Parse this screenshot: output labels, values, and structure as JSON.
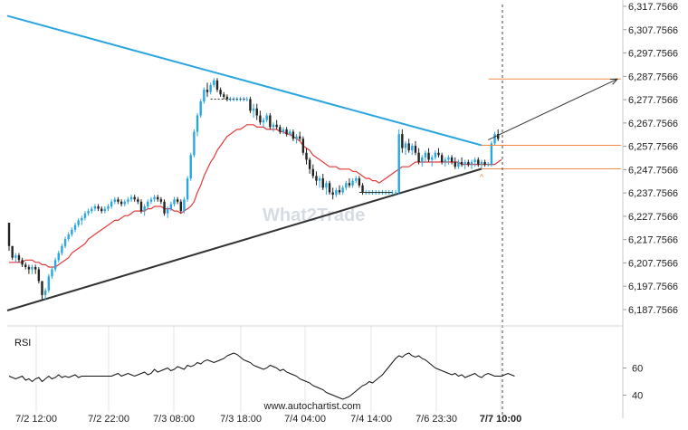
{
  "chart_data": {
    "type": "candlestick",
    "y_ticks": [
      "6,317.7566",
      "6,307.7566",
      "6,297.7566",
      "6,287.7566",
      "6,277.7566",
      "6,267.7566",
      "6,257.7566",
      "6,247.7566",
      "6,237.7566",
      "6,227.7566",
      "6,217.7566",
      "6,207.7566",
      "6,197.7566",
      "6,187.7566"
    ],
    "x_ticks": [
      "7/2 12:00",
      "7/2 22:00",
      "7/3 08:00",
      "7/3 18:00",
      "7/4 04:00",
      "7/4 14:00",
      "7/6 23:30",
      "7/7 10:00"
    ],
    "ylim": [
      6184.5,
      6318.5
    ],
    "n_bars": 150,
    "rsi": {
      "label": "RSI",
      "levels": [
        "60",
        "40"
      ],
      "ylim": [
        35,
        75
      ],
      "values": [
        54,
        53,
        52,
        53,
        54,
        51,
        52,
        50,
        52,
        53,
        50,
        52,
        54,
        52,
        53,
        55,
        53,
        54,
        53,
        54,
        55,
        53,
        54,
        54,
        54,
        54,
        54,
        54,
        54,
        54,
        54,
        54,
        55,
        56,
        54,
        55,
        56,
        55,
        54,
        55,
        56,
        57,
        55,
        56,
        59,
        57,
        58,
        59,
        60,
        58,
        59,
        61,
        60,
        59,
        62,
        61,
        62,
        64,
        63,
        65,
        66,
        65,
        64,
        65,
        66,
        67,
        69,
        70,
        71,
        70,
        68,
        66,
        65,
        64,
        62,
        61,
        60,
        59,
        60,
        62,
        61,
        60,
        58,
        59,
        57,
        56,
        55,
        54,
        52,
        51,
        50,
        49,
        47,
        46,
        45,
        44,
        42,
        41,
        40,
        39,
        38,
        37,
        38,
        39,
        41,
        43,
        45,
        47,
        48,
        50,
        49,
        51,
        53,
        55,
        58,
        61,
        64,
        67,
        69,
        68,
        70,
        71,
        69,
        68,
        69,
        67,
        66,
        64,
        62,
        60,
        59,
        58,
        57,
        56,
        55,
        56,
        54,
        55,
        53,
        54,
        55,
        56,
        54,
        53,
        55,
        56,
        55,
        54,
        54,
        54
      ],
      "end_values": [
        56,
        54
      ]
    },
    "fast_ma": [
      6208,
      6208,
      6208,
      6208,
      6208,
      6209,
      6209,
      6209,
      6208,
      6208,
      6207,
      6207,
      6206,
      6206,
      6206,
      6207,
      6208,
      6209,
      6210,
      6212,
      6213,
      6214,
      6215,
      6216,
      6218,
      6219,
      6220,
      6221,
      6222,
      6223,
      6224,
      6225,
      6226,
      6226,
      6227,
      6228,
      6228,
      6229,
      6230,
      6230,
      6230,
      6230,
      6231,
      6231,
      6232,
      6232,
      6232,
      6231,
      6231,
      6231,
      6230,
      6230,
      6229,
      6230,
      6231,
      6232,
      6234,
      6238,
      6241,
      6245,
      6248,
      6251,
      6253,
      6256,
      6258,
      6260,
      6262,
      6263,
      6264,
      6265,
      6265,
      6266,
      6267,
      6267,
      6267,
      6266,
      6266,
      6266,
      6265,
      6265,
      6265,
      6265,
      6264,
      6264,
      6263,
      6263,
      6262,
      6261,
      6260,
      6258,
      6257,
      6256,
      6254,
      6253,
      6252,
      6251,
      6250,
      6249,
      6249,
      6249,
      6248,
      6248,
      6248,
      6248,
      6247,
      6247,
      6246,
      6245,
      6244,
      6244,
      6243,
      6243,
      6242,
      6243,
      6244,
      6245,
      6246,
      6247,
      6248,
      6249,
      6249,
      6249,
      6250,
      6251,
      6251,
      6251,
      6251,
      6251,
      6251,
      6251,
      6251,
      6251,
      6251,
      6251,
      6251,
      6251,
      6251,
      6250,
      6250,
      6250,
      6250,
      6250,
      6250,
      6250,
      6250,
      6250,
      6250,
      6250,
      6251,
      6252
    ],
    "bar_ohlc": [
      [
        6225,
        6225,
        6213,
        6215
      ],
      [
        6215,
        6215,
        6209,
        6210
      ],
      [
        6210,
        6212,
        6208,
        6211
      ],
      [
        6211,
        6212,
        6208,
        6209
      ],
      [
        6209,
        6210,
        6206,
        6207
      ],
      [
        6207,
        6208,
        6205,
        6206
      ],
      [
        6206,
        6207,
        6203,
        6205
      ],
      [
        6205,
        6207,
        6203,
        6206
      ],
      [
        6206,
        6207,
        6203,
        6205
      ],
      [
        6205,
        6206,
        6199,
        6200
      ],
      [
        6200,
        6200,
        6192,
        6194
      ],
      [
        6194,
        6197,
        6192,
        6196
      ],
      [
        6196,
        6203,
        6195,
        6202
      ],
      [
        6202,
        6206,
        6201,
        6205
      ],
      [
        6205,
        6210,
        6204,
        6209
      ],
      [
        6209,
        6213,
        6208,
        6212
      ],
      [
        6212,
        6216,
        6211,
        6215
      ],
      [
        6215,
        6219,
        6214,
        6218
      ],
      [
        6218,
        6221,
        6217,
        6220
      ],
      [
        6220,
        6223,
        6219,
        6222
      ],
      [
        6222,
        6225,
        6221,
        6224
      ],
      [
        6224,
        6227,
        6223,
        6226
      ],
      [
        6226,
        6228,
        6224,
        6227
      ],
      [
        6227,
        6230,
        6226,
        6229
      ],
      [
        6229,
        6231,
        6228,
        6230
      ],
      [
        6230,
        6232,
        6229,
        6231
      ],
      [
        6231,
        6233,
        6230,
        6232
      ],
      [
        6232,
        6233,
        6230,
        6231
      ],
      [
        6231,
        6232,
        6229,
        6230
      ],
      [
        6230,
        6232,
        6229,
        6231
      ],
      [
        6231,
        6233,
        6230,
        6232
      ],
      [
        6232,
        6235,
        6231,
        6234
      ],
      [
        6234,
        6236,
        6233,
        6235
      ],
      [
        6235,
        6236,
        6233,
        6234
      ],
      [
        6234,
        6235,
        6232,
        6233
      ],
      [
        6233,
        6235,
        6232,
        6234
      ],
      [
        6234,
        6236,
        6233,
        6235
      ],
      [
        6235,
        6237,
        6234,
        6236
      ],
      [
        6236,
        6237,
        6234,
        6235
      ],
      [
        6235,
        6236,
        6233,
        6234
      ],
      [
        6234,
        6235,
        6229,
        6230
      ],
      [
        6230,
        6233,
        6228,
        6232
      ],
      [
        6232,
        6235,
        6231,
        6234
      ],
      [
        6234,
        6236,
        6233,
        6235
      ],
      [
        6235,
        6237,
        6234,
        6236
      ],
      [
        6236,
        6237,
        6234,
        6235
      ],
      [
        6235,
        6236,
        6233,
        6234
      ],
      [
        6234,
        6235,
        6228,
        6229
      ],
      [
        6229,
        6232,
        6227,
        6231
      ],
      [
        6231,
        6234,
        6230,
        6233
      ],
      [
        6233,
        6236,
        6232,
        6235
      ],
      [
        6235,
        6236,
        6233,
        6234
      ],
      [
        6234,
        6235,
        6229,
        6230
      ],
      [
        6230,
        6236,
        6229,
        6235
      ],
      [
        6235,
        6245,
        6234,
        6244
      ],
      [
        6244,
        6255,
        6243,
        6254
      ],
      [
        6254,
        6265,
        6253,
        6264
      ],
      [
        6264,
        6272,
        6262,
        6271
      ],
      [
        6271,
        6278,
        6270,
        6277
      ],
      [
        6277,
        6283,
        6276,
        6282
      ],
      [
        6282,
        6285,
        6279,
        6281
      ],
      [
        6281,
        6285,
        6280,
        6284
      ],
      [
        6284,
        6287,
        6283,
        6286
      ],
      [
        6286,
        6287,
        6281,
        6282
      ],
      [
        6282,
        6283,
        6279,
        6280
      ],
      [
        6280,
        6281,
        6278,
        6279
      ],
      [
        6279,
        6280,
        6277,
        6278
      ],
      [
        6278,
        6279,
        6277,
        6278
      ],
      [
        6278,
        6279,
        6277,
        6278
      ],
      [
        6278,
        6279,
        6277,
        6278
      ],
      [
        6278,
        6279,
        6277,
        6278
      ],
      [
        6278,
        6279,
        6277,
        6278
      ],
      [
        6278,
        6279,
        6277,
        6278
      ],
      [
        6278,
        6279,
        6272,
        6273
      ],
      [
        6273,
        6276,
        6270,
        6274
      ],
      [
        6274,
        6276,
        6269,
        6271
      ],
      [
        6271,
        6273,
        6267,
        6268
      ],
      [
        6268,
        6270,
        6266,
        6269
      ],
      [
        6269,
        6272,
        6268,
        6271
      ],
      [
        6271,
        6272,
        6265,
        6266
      ],
      [
        6266,
        6268,
        6264,
        6267
      ],
      [
        6267,
        6269,
        6265,
        6266
      ],
      [
        6266,
        6267,
        6263,
        6264
      ],
      [
        6264,
        6266,
        6263,
        6265
      ],
      [
        6265,
        6266,
        6262,
        6263
      ],
      [
        6263,
        6265,
        6262,
        6264
      ],
      [
        6264,
        6265,
        6260,
        6261
      ],
      [
        6261,
        6263,
        6259,
        6262
      ],
      [
        6262,
        6264,
        6260,
        6261
      ],
      [
        6261,
        6262,
        6254,
        6255
      ],
      [
        6255,
        6257,
        6250,
        6252
      ],
      [
        6252,
        6253,
        6246,
        6248
      ],
      [
        6248,
        6250,
        6244,
        6245
      ],
      [
        6245,
        6247,
        6241,
        6243
      ],
      [
        6243,
        6245,
        6240,
        6244
      ],
      [
        6244,
        6246,
        6239,
        6240
      ],
      [
        6240,
        6243,
        6237,
        6242
      ],
      [
        6242,
        6243,
        6237,
        6238
      ],
      [
        6238,
        6240,
        6235,
        6237
      ],
      [
        6237,
        6240,
        6236,
        6239
      ],
      [
        6239,
        6241,
        6237,
        6238
      ],
      [
        6238,
        6241,
        6237,
        6240
      ],
      [
        6240,
        6243,
        6239,
        6242
      ],
      [
        6242,
        6244,
        6240,
        6241
      ],
      [
        6241,
        6244,
        6240,
        6243
      ],
      [
        6243,
        6245,
        6242,
        6244
      ],
      [
        6244,
        6245,
        6240,
        6241
      ],
      [
        6241,
        6242,
        6237,
        6238
      ],
      [
        6238,
        6239,
        6237,
        6238
      ],
      [
        6238,
        6239,
        6237,
        6238
      ],
      [
        6238,
        6239,
        6237,
        6238
      ],
      [
        6238,
        6239,
        6237,
        6238
      ],
      [
        6238,
        6239,
        6237,
        6238
      ],
      [
        6238,
        6239,
        6237,
        6238
      ],
      [
        6238,
        6239,
        6237,
        6238
      ],
      [
        6238,
        6239,
        6237,
        6238
      ],
      [
        6238,
        6239,
        6237,
        6238
      ],
      [
        6238,
        6239,
        6237,
        6238
      ],
      [
        6238,
        6265,
        6237,
        6263
      ],
      [
        6263,
        6265,
        6255,
        6257
      ],
      [
        6257,
        6260,
        6254,
        6259
      ],
      [
        6259,
        6261,
        6255,
        6256
      ],
      [
        6256,
        6259,
        6254,
        6258
      ],
      [
        6258,
        6260,
        6254,
        6255
      ],
      [
        6255,
        6257,
        6250,
        6251
      ],
      [
        6251,
        6254,
        6249,
        6253
      ],
      [
        6253,
        6256,
        6251,
        6255
      ],
      [
        6255,
        6257,
        6251,
        6252
      ],
      [
        6252,
        6254,
        6249,
        6253
      ],
      [
        6253,
        6256,
        6252,
        6255
      ],
      [
        6255,
        6257,
        6253,
        6254
      ],
      [
        6254,
        6255,
        6250,
        6251
      ],
      [
        6251,
        6253,
        6249,
        6252
      ],
      [
        6252,
        6254,
        6250,
        6253
      ],
      [
        6253,
        6254,
        6250,
        6251
      ],
      [
        6251,
        6253,
        6248,
        6249
      ],
      [
        6249,
        6252,
        6248,
        6251
      ],
      [
        6251,
        6253,
        6249,
        6250
      ],
      [
        6250,
        6252,
        6248,
        6251
      ],
      [
        6251,
        6252,
        6249,
        6250
      ],
      [
        6250,
        6252,
        6248,
        6251
      ],
      [
        6251,
        6253,
        6249,
        6252
      ],
      [
        6252,
        6253,
        6249,
        6250
      ],
      [
        6250,
        6252,
        6248,
        6251
      ],
      [
        6251,
        6252,
        6249,
        6250
      ],
      [
        6250,
        6251,
        6249,
        6250
      ],
      [
        6250,
        6260,
        6249,
        6259
      ],
      [
        6259,
        6264,
        6258,
        6263
      ],
      [
        6263,
        6265,
        6260,
        6261
      ]
    ],
    "trendlines": {
      "resistance": {
        "from": [
          0,
          6313.5
        ],
        "to": [
          143,
          6258.2
        ]
      },
      "support": {
        "from": [
          0,
          6187.6
        ],
        "to": [
          143,
          6248.1
        ]
      }
    },
    "levels": [
      {
        "name": "target",
        "value": 6286.6,
        "from_bar": 144
      },
      {
        "name": "breakout",
        "value": 6258.2,
        "from_bar": 143
      },
      {
        "name": "support",
        "value": 6248.1,
        "from_bar": 143
      }
    ],
    "projection": {
      "from": [
        145,
        6260.5
      ],
      "to": [
        175,
        6286.6
      ]
    },
    "colors": {
      "resistance": "#2aa6df",
      "support": "#333333",
      "bull": "#2aa6df",
      "bear": "#222222",
      "ma": "#e63a3a",
      "level": "#f08a4b",
      "projection": "#333333",
      "rsi": "#111111"
    }
  },
  "watermark": "What2Trade",
  "credit": "www.autochartist.com"
}
